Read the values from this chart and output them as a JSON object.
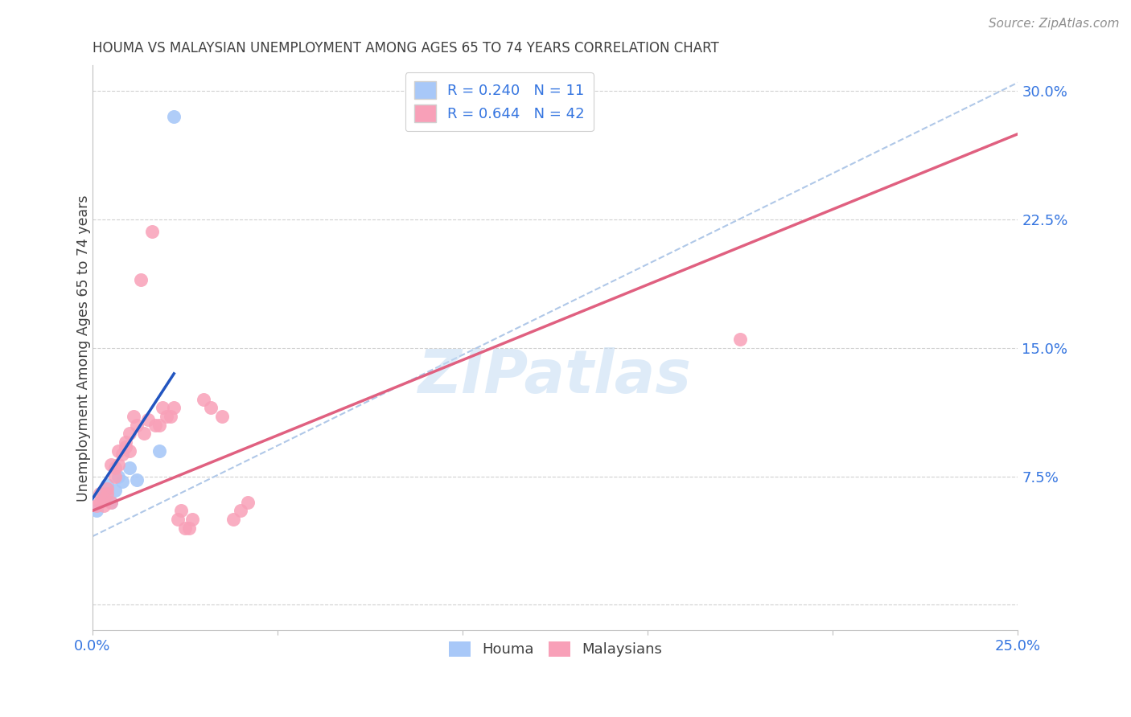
{
  "title": "HOUMA VS MALAYSIAN UNEMPLOYMENT AMONG AGES 65 TO 74 YEARS CORRELATION CHART",
  "source": "Source: ZipAtlas.com",
  "ylabel": "Unemployment Among Ages 65 to 74 years",
  "xlim": [
    0.0,
    0.25
  ],
  "ylim": [
    -0.015,
    0.315
  ],
  "xticks": [
    0.0,
    0.05,
    0.1,
    0.15,
    0.2,
    0.25
  ],
  "xticklabels": [
    "0.0%",
    "",
    "",
    "",
    "",
    "25.0%"
  ],
  "yticks": [
    0.0,
    0.075,
    0.15,
    0.225,
    0.3
  ],
  "yticklabels": [
    "",
    "7.5%",
    "15.0%",
    "22.5%",
    "30.0%"
  ],
  "houma_R": 0.24,
  "houma_N": 11,
  "malay_R": 0.644,
  "malay_N": 42,
  "houma_color": "#a8c8f8",
  "malay_color": "#f8a0b8",
  "houma_line_color": "#2255c0",
  "malay_line_color": "#e06080",
  "ref_line_color": "#b0c8e8",
  "tick_color": "#3575e0",
  "houma_x": [
    0.001,
    0.003,
    0.004,
    0.005,
    0.006,
    0.007,
    0.008,
    0.01,
    0.012,
    0.018,
    0.022
  ],
  "houma_y": [
    0.055,
    0.065,
    0.07,
    0.06,
    0.067,
    0.075,
    0.072,
    0.08,
    0.073,
    0.09,
    0.285
  ],
  "malay_x": [
    0.001,
    0.002,
    0.002,
    0.003,
    0.003,
    0.004,
    0.004,
    0.005,
    0.005,
    0.006,
    0.006,
    0.007,
    0.007,
    0.008,
    0.009,
    0.009,
    0.01,
    0.01,
    0.011,
    0.012,
    0.013,
    0.014,
    0.015,
    0.016,
    0.017,
    0.018,
    0.019,
    0.02,
    0.021,
    0.022,
    0.023,
    0.024,
    0.025,
    0.026,
    0.027,
    0.03,
    0.032,
    0.035,
    0.038,
    0.04,
    0.175,
    0.042
  ],
  "malay_y": [
    0.058,
    0.06,
    0.065,
    0.058,
    0.062,
    0.065,
    0.068,
    0.06,
    0.082,
    0.075,
    0.08,
    0.09,
    0.082,
    0.088,
    0.092,
    0.095,
    0.09,
    0.1,
    0.11,
    0.105,
    0.19,
    0.1,
    0.108,
    0.218,
    0.105,
    0.105,
    0.115,
    0.11,
    0.11,
    0.115,
    0.05,
    0.055,
    0.045,
    0.045,
    0.05,
    0.12,
    0.115,
    0.11,
    0.05,
    0.055,
    0.155,
    0.06
  ],
  "malay_line_x0": 0.0,
  "malay_line_y0": 0.055,
  "malay_line_x1": 0.25,
  "malay_line_y1": 0.275,
  "houma_line_x0": 0.0,
  "houma_line_y0": 0.062,
  "houma_line_x1": 0.022,
  "houma_line_y1": 0.135,
  "ref_line_x0": 0.0,
  "ref_line_y0": 0.04,
  "ref_line_x1": 0.25,
  "ref_line_y1": 0.305,
  "watermark": "ZIPatlas",
  "background_color": "#ffffff",
  "grid_color": "#d0d0d0"
}
